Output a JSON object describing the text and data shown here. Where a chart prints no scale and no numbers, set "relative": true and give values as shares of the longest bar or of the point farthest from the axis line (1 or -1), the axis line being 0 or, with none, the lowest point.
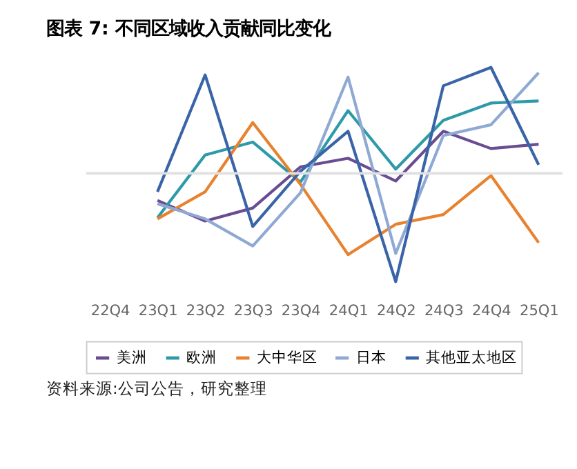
{
  "chart_data": {
    "type": "line",
    "title": "图表 7: 不同区域收入贡献同比变化",
    "relative": true,
    "categories": [
      "22Q4",
      "23Q1",
      "23Q2",
      "23Q3",
      "23Q4",
      "24Q1",
      "24Q2",
      "24Q3",
      "24Q4",
      "25Q1"
    ],
    "series": [
      {
        "name": "美洲",
        "color": "#6a4c93",
        "values": [
          null,
          -0.25,
          -0.44,
          -0.32,
          0.06,
          0.14,
          -0.07,
          0.39,
          0.23,
          0.27
        ]
      },
      {
        "name": "欧洲",
        "color": "#2e9aa8",
        "values": [
          null,
          -0.41,
          0.17,
          0.29,
          -0.08,
          0.58,
          0.04,
          0.49,
          0.65,
          0.67
        ]
      },
      {
        "name": "大中华区",
        "color": "#e8822e",
        "values": [
          null,
          -0.42,
          -0.17,
          0.47,
          -0.1,
          -0.75,
          -0.47,
          -0.38,
          -0.02,
          -0.64
        ]
      },
      {
        "name": "日本",
        "color": "#8fa9d4",
        "values": [
          null,
          -0.28,
          -0.42,
          -0.67,
          -0.18,
          0.89,
          -0.74,
          0.35,
          0.45,
          0.93
        ]
      },
      {
        "name": "其他亚太地区",
        "color": "#3a64a8",
        "values": [
          null,
          -0.17,
          0.91,
          -0.49,
          0.02,
          0.39,
          -1,
          0.81,
          0.98,
          0.08
        ]
      }
    ],
    "legend": "bottom",
    "grid": false,
    "marker": "none",
    "line_style": "solid",
    "annotations": [
      "资料来源:公司公告，研究整理"
    ]
  }
}
